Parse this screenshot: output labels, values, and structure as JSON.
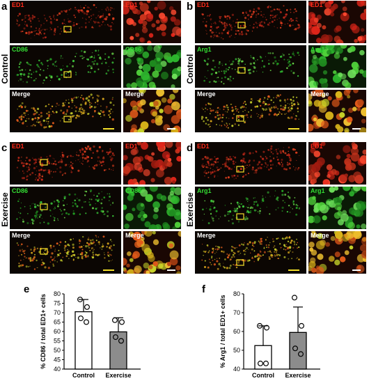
{
  "panels": [
    {
      "label": "a",
      "condition": "Control",
      "marker": "CD86",
      "rows": [
        "ED1",
        "CD86",
        "Merge"
      ]
    },
    {
      "label": "b",
      "condition": "Control",
      "marker": "Arg1",
      "rows": [
        "ED1",
        "Arg1",
        "Merge"
      ]
    },
    {
      "label": "c",
      "condition": "Exercise",
      "marker": "CD86",
      "rows": [
        "ED1",
        "CD86",
        "Merge"
      ]
    },
    {
      "label": "d",
      "condition": "Exercise",
      "marker": "Arg1",
      "rows": [
        "ED1",
        "Arg1",
        "Merge"
      ]
    }
  ],
  "chart_data": [
    {
      "panel_label": "e",
      "type": "bar",
      "categories": [
        "Control",
        "Exercise"
      ],
      "values": [
        70.5,
        59.8
      ],
      "errors": [
        6.5,
        7.5
      ],
      "points": [
        [
          77,
          73,
          67,
          65
        ],
        [
          66,
          65,
          57,
          55
        ]
      ],
      "bar_colors": [
        "#ffffff",
        "#8c8c8c"
      ],
      "ylabel": "% CD86 / total ED1+ cells",
      "ylim": [
        40,
        80
      ],
      "yticks": [
        40,
        45,
        50,
        55,
        60,
        65,
        70,
        75,
        80
      ],
      "legend": "none"
    },
    {
      "panel_label": "f",
      "type": "bar",
      "categories": [
        "Control",
        "Exercise"
      ],
      "values": [
        52.5,
        59.5
      ],
      "errors": [
        10.5,
        13.5
      ],
      "points": [
        [
          63,
          62,
          43,
          43
        ],
        [
          78,
          63,
          51,
          48
        ]
      ],
      "bar_colors": [
        "#ffffff",
        "#8c8c8c"
      ],
      "ylabel": "% Arg1 / total ED1+ cells",
      "ylim": [
        40,
        80
      ],
      "yticks": [
        40,
        50,
        60,
        70,
        80
      ],
      "legend": "none"
    }
  ]
}
